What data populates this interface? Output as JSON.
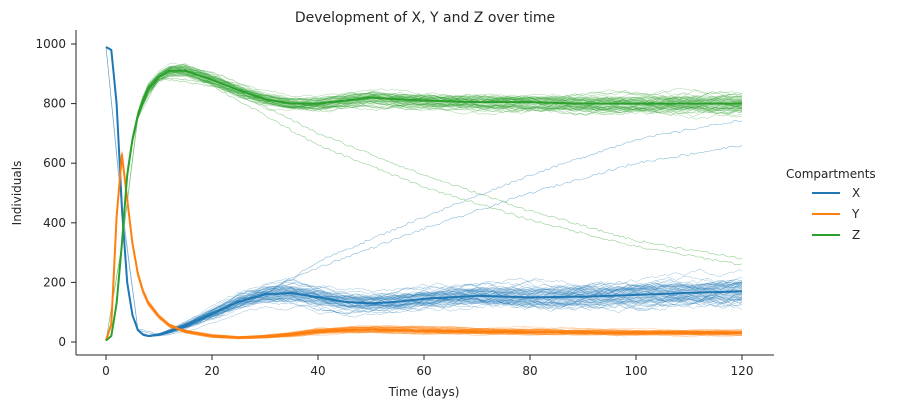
{
  "chart_data": {
    "type": "line",
    "title": "Development of X, Y and Z over time",
    "xlabel": "Time (days)",
    "ylabel": "Individuals",
    "xlim": [
      0,
      120
    ],
    "ylim": [
      0,
      1000
    ],
    "x_ticks": [
      0,
      20,
      40,
      60,
      80,
      100,
      120
    ],
    "y_ticks": [
      0,
      200,
      400,
      600,
      800,
      1000
    ],
    "grid": false,
    "legend": {
      "title": "Compartments",
      "placement": "right"
    },
    "series": [
      {
        "name": "X",
        "color": "#1f77b4",
        "x": [
          0,
          1,
          2,
          3,
          4,
          5,
          6,
          7,
          8,
          10,
          12,
          15,
          20,
          25,
          30,
          35,
          40,
          45,
          50,
          55,
          60,
          70,
          80,
          90,
          100,
          110,
          120
        ],
        "mean": [
          990,
          980,
          800,
          450,
          200,
          90,
          40,
          25,
          20,
          25,
          35,
          55,
          95,
          135,
          160,
          165,
          150,
          135,
          130,
          135,
          145,
          155,
          150,
          152,
          158,
          165,
          170
        ],
        "band_low": [
          988,
          975,
          780,
          420,
          180,
          80,
          35,
          20,
          17,
          21,
          29,
          47,
          83,
          118,
          140,
          142,
          126,
          113,
          110,
          113,
          121,
          128,
          122,
          124,
          129,
          135,
          140
        ],
        "band_high": [
          992,
          985,
          820,
          480,
          220,
          100,
          45,
          30,
          23,
          29,
          41,
          63,
          107,
          152,
          180,
          188,
          174,
          157,
          150,
          157,
          169,
          182,
          178,
          180,
          187,
          195,
          200
        ]
      },
      {
        "name": "Y",
        "color": "#ff7f0e",
        "x": [
          0,
          1,
          2,
          3,
          4,
          5,
          6,
          7,
          8,
          10,
          12,
          15,
          20,
          25,
          30,
          35,
          40,
          45,
          50,
          55,
          60,
          70,
          80,
          90,
          100,
          110,
          120
        ],
        "mean": [
          5,
          60,
          420,
          630,
          480,
          330,
          230,
          170,
          130,
          85,
          55,
          35,
          20,
          15,
          18,
          25,
          35,
          40,
          42,
          40,
          38,
          35,
          33,
          32,
          30,
          30,
          30
        ],
        "band_low": [
          4,
          52,
          395,
          605,
          455,
          310,
          215,
          158,
          120,
          78,
          50,
          31,
          17,
          12,
          14,
          20,
          28,
          33,
          34,
          32,
          30,
          28,
          26,
          25,
          24,
          24,
          24
        ],
        "band_high": [
          6,
          68,
          445,
          655,
          505,
          350,
          245,
          182,
          140,
          92,
          60,
          39,
          23,
          18,
          22,
          30,
          42,
          47,
          50,
          48,
          46,
          42,
          40,
          39,
          36,
          36,
          36
        ]
      },
      {
        "name": "Z",
        "color": "#2ca02c",
        "x": [
          0,
          1,
          2,
          3,
          4,
          5,
          6,
          7,
          8,
          10,
          12,
          15,
          20,
          25,
          30,
          35,
          40,
          45,
          50,
          55,
          60,
          70,
          80,
          90,
          100,
          110,
          120
        ],
        "mean": [
          5,
          20,
          130,
          330,
          560,
          680,
          760,
          810,
          850,
          890,
          910,
          910,
          880,
          845,
          815,
          800,
          800,
          810,
          820,
          815,
          810,
          805,
          805,
          800,
          800,
          800,
          800
        ],
        "band_low": [
          4,
          17,
          115,
          305,
          535,
          660,
          742,
          792,
          832,
          875,
          895,
          896,
          866,
          830,
          800,
          785,
          784,
          793,
          802,
          797,
          791,
          785,
          784,
          778,
          777,
          776,
          775
        ],
        "band_high": [
          6,
          23,
          145,
          355,
          585,
          700,
          778,
          828,
          868,
          905,
          925,
          924,
          894,
          860,
          830,
          815,
          816,
          827,
          838,
          833,
          829,
          825,
          826,
          822,
          823,
          824,
          825
        ]
      }
    ],
    "stochastic_runs_per_series": 40,
    "outlier_runs": [
      {
        "series": "X",
        "x": [
          0,
          3,
          6,
          10,
          20,
          30,
          40,
          60,
          80,
          100,
          120
        ],
        "y": [
          990,
          460,
          45,
          25,
          90,
          170,
          250,
          380,
          500,
          600,
          660
        ]
      },
      {
        "series": "X",
        "x": [
          0,
          3,
          6,
          10,
          20,
          30,
          40,
          60,
          80,
          100,
          120
        ],
        "y": [
          990,
          440,
          40,
          22,
          80,
          160,
          270,
          420,
          560,
          680,
          745
        ]
      },
      {
        "series": "Z",
        "x": [
          0,
          3,
          6,
          10,
          20,
          30,
          40,
          60,
          80,
          100,
          120
        ],
        "y": [
          5,
          330,
          760,
          890,
          870,
          790,
          700,
          560,
          440,
          340,
          280
        ]
      },
      {
        "series": "Z",
        "x": [
          0,
          3,
          6,
          10,
          20,
          30,
          40,
          60,
          80,
          100,
          120
        ],
        "y": [
          5,
          320,
          750,
          885,
          860,
          760,
          660,
          520,
          410,
          320,
          260
        ]
      }
    ]
  }
}
